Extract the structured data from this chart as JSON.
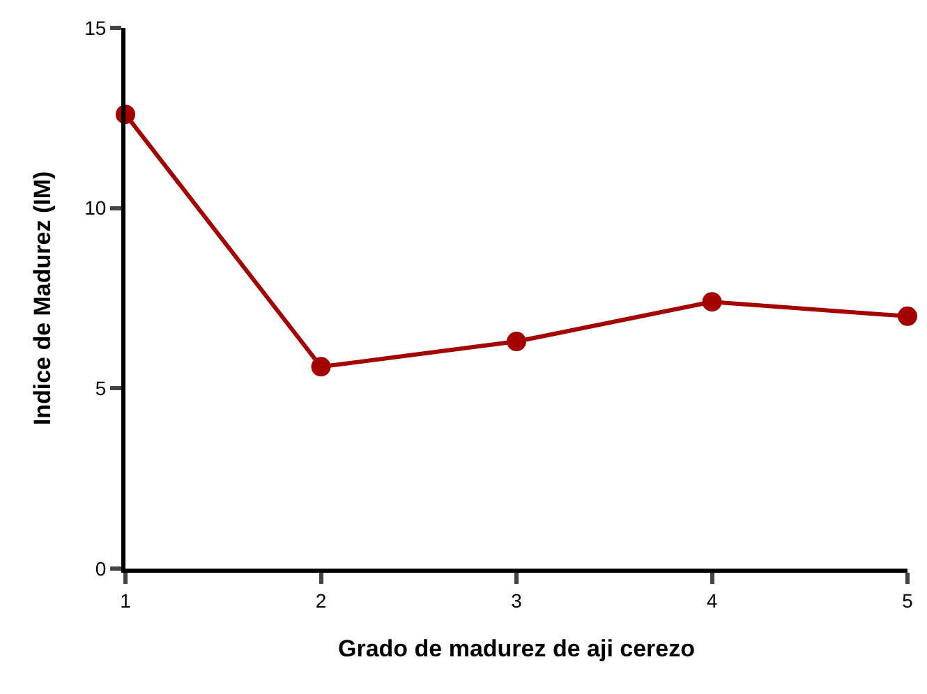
{
  "chart_data": {
    "type": "line",
    "xlabel": "Grado de madurez de aji cerezo",
    "ylabel": "Indice de Madurez (IM)",
    "x": [
      1,
      2,
      3,
      4,
      5
    ],
    "series": [
      {
        "color": "#a50000",
        "values": [
          12.6,
          5.6,
          6.3,
          7.4,
          7.0
        ]
      }
    ],
    "xlim": [
      1,
      5
    ],
    "xticks": [
      1,
      2,
      3,
      4,
      5
    ],
    "ylim": [
      0,
      15
    ],
    "yticks": [
      0,
      5,
      10,
      15
    ],
    "legend": false,
    "marker": "circle",
    "line_style": "solid"
  }
}
